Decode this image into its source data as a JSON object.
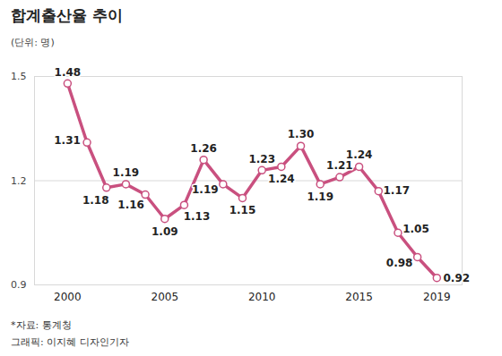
{
  "chart_data": {
    "type": "line",
    "title": "합계출산율 추이",
    "y_label": "(단위: 명)",
    "annotations": [
      "*자료: 통계청",
      "그래픽: 이지혜 디자인기자"
    ],
    "x": [
      2000,
      2001,
      2002,
      2003,
      2004,
      2005,
      2006,
      2007,
      2008,
      2009,
      2010,
      2011,
      2012,
      2013,
      2014,
      2015,
      2016,
      2017,
      2018,
      2019
    ],
    "values": [
      1.48,
      1.31,
      1.18,
      1.19,
      1.16,
      1.09,
      1.13,
      1.26,
      1.19,
      1.15,
      1.23,
      1.24,
      1.3,
      1.19,
      1.21,
      1.24,
      1.17,
      1.05,
      0.98,
      0.92
    ],
    "value_labels": [
      "1.48",
      "1.31",
      "1.18",
      "1.19",
      "1.16",
      "1.09",
      "1.13",
      "1.26",
      "1.19",
      "1.15",
      "1.23",
      "1.24",
      "1.30",
      "1.19",
      "1.21",
      "1.24",
      "1.17",
      "1.05",
      "0.98",
      "0.92"
    ],
    "color": "#c9507f",
    "marker": "circle",
    "xlim": [
      1998.3,
      2020.3
    ],
    "xticks": [
      2000,
      2005,
      2010,
      2015,
      2019
    ],
    "ylim": [
      0.9,
      1.5
    ],
    "yticks": [
      0.9,
      1.2,
      1.5
    ],
    "grid": true,
    "data_labels": true
  }
}
